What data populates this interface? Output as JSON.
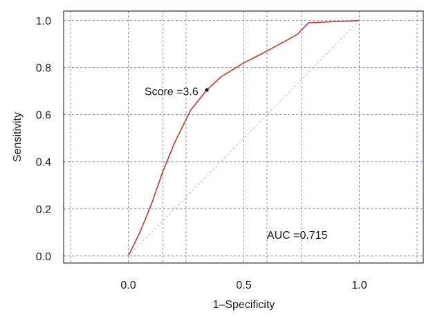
{
  "chart_data": {
    "type": "line",
    "title": "",
    "xlabel": "1–Specificity",
    "ylabel": "Sensitivity",
    "xlim": [
      -0.28,
      1.28
    ],
    "ylim": [
      -0.03,
      1.04
    ],
    "x_ticks": [
      0.0,
      0.5,
      1.0
    ],
    "x_tick_labels": [
      "0.0",
      "0.5",
      "1.0"
    ],
    "y_ticks": [
      0.0,
      0.2,
      0.4,
      0.6,
      0.8,
      1.0
    ],
    "y_tick_labels": [
      "0.0",
      "0.2",
      "0.4",
      "0.6",
      "0.8",
      "1.0"
    ],
    "x_grid": [
      -0.25,
      0.0,
      0.15,
      0.25,
      0.5,
      0.6,
      0.75,
      1.0,
      1.25
    ],
    "grid": true,
    "grid_color": "#8a8ac0",
    "series": [
      {
        "color": "#c0392b",
        "x": [
          0.0,
          0.05,
          0.1,
          0.15,
          0.2,
          0.27,
          0.34,
          0.4,
          0.5,
          0.6,
          0.73,
          0.78,
          1.0
        ],
        "y": [
          0.0,
          0.1,
          0.22,
          0.36,
          0.48,
          0.62,
          0.705,
          0.76,
          0.82,
          0.87,
          0.94,
          0.99,
          1.0
        ]
      },
      {
        "color": "#b7b7d4",
        "dashed": true,
        "x": [
          0.0,
          1.0
        ],
        "y": [
          0.0,
          1.0
        ]
      }
    ],
    "marker": {
      "x": 0.34,
      "y": 0.705,
      "color": "#111111"
    },
    "annotations": [
      {
        "text": "Score =3.6",
        "x": 0.07,
        "y": 0.7
      },
      {
        "text": "AUC =0.715",
        "x": 0.6,
        "y": 0.09
      }
    ]
  }
}
